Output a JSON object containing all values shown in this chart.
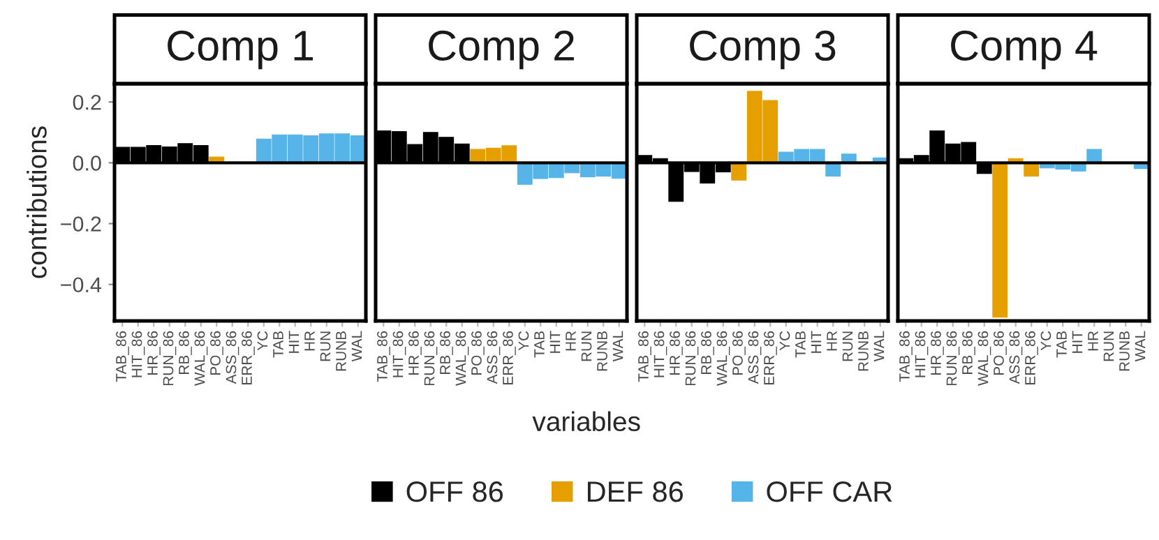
{
  "chart_data": [
    {
      "type": "bar",
      "title": "Comp 1",
      "ylabel": "contributions",
      "categories": [
        "TAB_86",
        "HIT_86",
        "HR_86",
        "RUN_86",
        "RB_86",
        "WAL_86",
        "PO_86",
        "ASS_86",
        "ERR_86",
        "YC",
        "TAB",
        "HIT",
        "HR",
        "RUN",
        "RUNB",
        "WAL"
      ],
      "series": [
        {
          "name": "OFF 86",
          "color": "#000000",
          "values": [
            0.051,
            0.051,
            0.057,
            0.052,
            0.063,
            0.057,
            null,
            null,
            null,
            null,
            null,
            null,
            null,
            null,
            null,
            null
          ]
        },
        {
          "name": "DEF 86",
          "color": "#e69f00",
          "values": [
            null,
            null,
            null,
            null,
            null,
            null,
            0.019,
            0,
            0,
            null,
            null,
            null,
            null,
            null,
            null,
            null
          ]
        },
        {
          "name": "OFF CAR",
          "color": "#56b4e9",
          "values": [
            null,
            null,
            null,
            null,
            null,
            null,
            null,
            null,
            null,
            0.078,
            0.092,
            0.092,
            0.089,
            0.095,
            0.095,
            0.089
          ]
        }
      ],
      "ylim": [
        -0.52,
        0.26
      ],
      "yticks": [
        {
          "value": -0.4,
          "label": "−0.4"
        },
        {
          "value": -0.2,
          "label": "−0.2"
        },
        {
          "value": 0,
          "label": "0.0"
        },
        {
          "value": 0.2,
          "label": "0.2"
        }
      ],
      "ref_lines": [
        {
          "axis": "y",
          "value": 0,
          "color": "#000000"
        }
      ],
      "legend": "bottom"
    },
    {
      "type": "bar",
      "title": "Comp 2",
      "xlabel": "variables",
      "categories": [
        "TAB_86",
        "HIT_86",
        "HR_86",
        "RUN_86",
        "RB_86",
        "WAL_86",
        "PO_86",
        "ASS_86",
        "ERR_86",
        "YC",
        "TAB",
        "HIT",
        "HR",
        "RUN",
        "RUNB",
        "WAL"
      ],
      "series": [
        {
          "color": "#000000",
          "values": [
            0.105,
            0.103,
            0.06,
            0.1,
            0.084,
            0.062,
            null,
            null,
            null,
            null,
            null,
            null,
            null,
            null,
            null,
            null
          ]
        },
        {
          "color": "#e69f00",
          "values": [
            null,
            null,
            null,
            null,
            null,
            null,
            0.044,
            0.048,
            0.056,
            null,
            null,
            null,
            null,
            null,
            null,
            null
          ]
        },
        {
          "color": "#56b4e9",
          "values": [
            null,
            null,
            null,
            null,
            null,
            null,
            null,
            null,
            null,
            -0.071,
            -0.052,
            -0.049,
            -0.033,
            -0.046,
            -0.044,
            -0.051
          ]
        }
      ],
      "ylim": [
        -0.52,
        0.26
      ],
      "ref_lines": [
        {
          "axis": "y",
          "value": 0,
          "color": "#000000"
        }
      ],
      "tick_labels": "x"
    },
    {
      "type": "bar",
      "title": "Comp 3",
      "categories": [
        "TAB_86",
        "HIT_86",
        "HR_86",
        "RUN_86",
        "RB_86",
        "WAL_86",
        "PO_86",
        "ASS_86",
        "ERR_86",
        "YC",
        "TAB",
        "HIT",
        "HR",
        "RUN",
        "RUNB",
        "WAL"
      ],
      "series": [
        {
          "color": "#000000",
          "values": [
            0.024,
            0.014,
            -0.127,
            -0.029,
            -0.067,
            -0.03,
            null,
            null,
            null,
            null,
            null,
            null,
            null,
            null,
            null,
            null
          ]
        },
        {
          "color": "#e69f00",
          "values": [
            null,
            null,
            null,
            null,
            null,
            null,
            -0.057,
            0.235,
            0.205,
            null,
            null,
            null,
            null,
            null,
            null,
            null
          ]
        },
        {
          "color": "#56b4e9",
          "values": [
            null,
            null,
            null,
            null,
            null,
            null,
            null,
            null,
            null,
            0.035,
            0.044,
            0.044,
            -0.044,
            0.029,
            0,
            0.016
          ]
        }
      ],
      "ylim": [
        -0.52,
        0.26
      ],
      "ref_lines": [
        {
          "axis": "y",
          "value": 0,
          "color": "#000000"
        }
      ],
      "tick_labels": "x"
    },
    {
      "type": "bar",
      "title": "Comp 4",
      "categories": [
        "TAB_86",
        "HIT_86",
        "HR_86",
        "RUN_86",
        "RB_86",
        "WAL_86",
        "PO_86",
        "ASS_86",
        "ERR_86",
        "YC",
        "TAB",
        "HIT",
        "HR",
        "RUN",
        "RUNB",
        "WAL"
      ],
      "series": [
        {
          "color": "#000000",
          "values": [
            0.014,
            0.024,
            0.105,
            0.062,
            0.067,
            -0.035,
            null,
            null,
            null,
            null,
            null,
            null,
            null,
            null,
            null,
            null
          ]
        },
        {
          "color": "#e69f00",
          "values": [
            null,
            null,
            null,
            null,
            null,
            null,
            -0.508,
            0.014,
            -0.044,
            null,
            null,
            null,
            null,
            null,
            null,
            null
          ]
        },
        {
          "color": "#56b4e9",
          "values": [
            null,
            null,
            null,
            null,
            null,
            null,
            null,
            null,
            null,
            -0.017,
            -0.021,
            -0.027,
            0.044,
            0,
            0,
            -0.019
          ]
        }
      ],
      "ylim": [
        -0.52,
        0.26
      ],
      "ref_lines": [
        {
          "axis": "y",
          "value": 0,
          "color": "#000000"
        }
      ],
      "tick_labels": "x"
    }
  ]
}
